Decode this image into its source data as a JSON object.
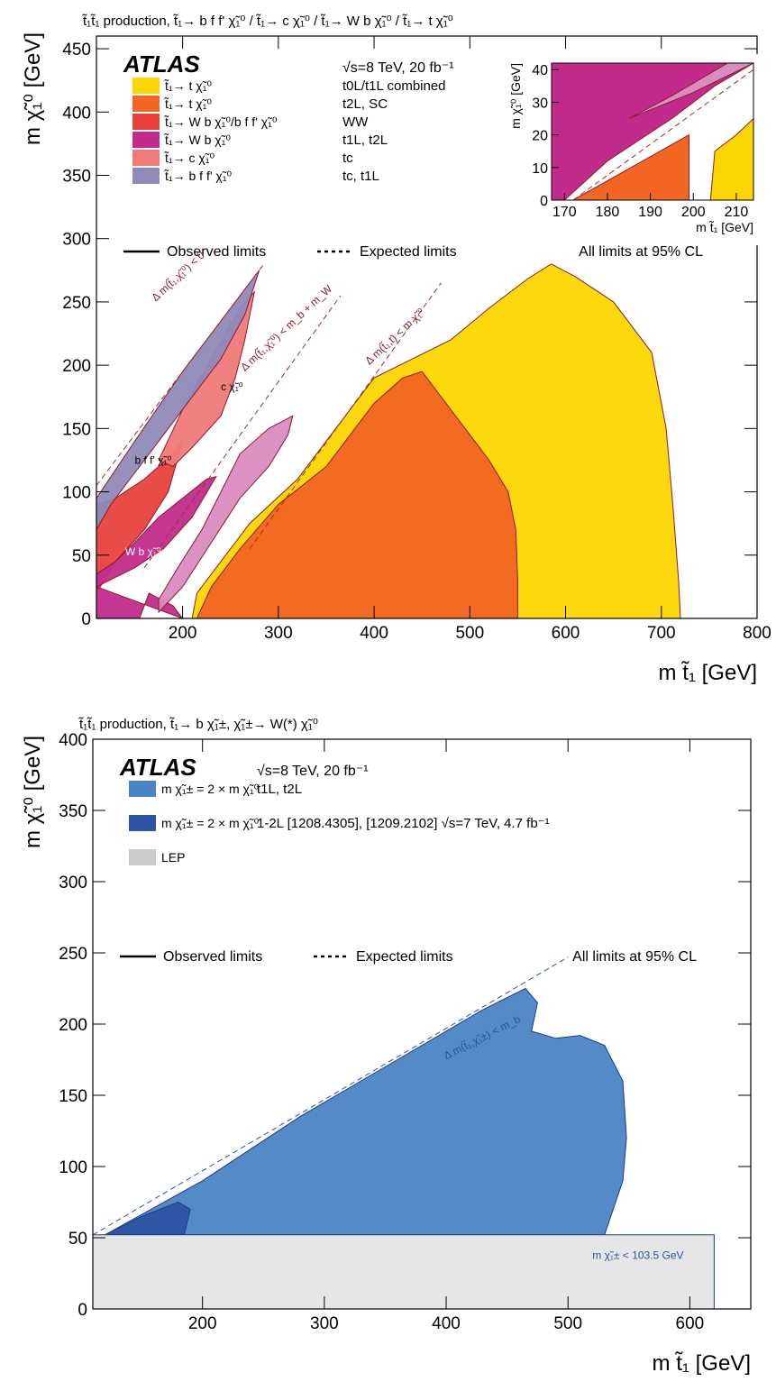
{
  "chart_data": [
    {
      "type": "area",
      "title": "t̃₁t̃₁ production, t̃₁→ b f f' χ̃₁⁰ / t̃₁→ c χ̃₁⁰ / t̃₁→ W b χ̃₁⁰ / t̃₁→ t χ̃₁⁰",
      "brand": "ATLAS",
      "energy_label": "√s=8 TeV, 20 fb⁻¹",
      "xlabel": "m t̃₁ [GeV]",
      "ylabel": "m χ̃₁⁰ [GeV]",
      "xlim": [
        110,
        800
      ],
      "ylim": [
        0,
        460
      ],
      "x_ticks": [
        200,
        300,
        400,
        500,
        600,
        700,
        800
      ],
      "y_ticks": [
        0,
        50,
        100,
        150,
        200,
        250,
        300,
        350,
        400,
        450
      ],
      "legend": [
        {
          "label": "t̃₁→ t χ̃₁⁰",
          "analysis": "t0L/t1L combined",
          "color": "#fcd600"
        },
        {
          "label": "t̃₁→ t χ̃₁⁰",
          "analysis": "t2L, SC",
          "color": "#f26522"
        },
        {
          "label": "t̃₁→ W b χ̃₁⁰/b f f' χ̃₁⁰",
          "analysis": "WW",
          "color": "#e8413c"
        },
        {
          "label": "t̃₁→ W b χ̃₁⁰",
          "analysis": "t1L, t2L",
          "color": "#c22b8c"
        },
        {
          "label": "t̃₁→ c χ̃₁⁰",
          "analysis": "tc",
          "color": "#f07a7a"
        },
        {
          "label": "t̃₁→ b f f' χ̃₁⁰",
          "analysis": "tc, t1L",
          "color": "#8f8ab8"
        }
      ],
      "observed_label": "Observed limits",
      "expected_label": "Expected limits",
      "cl_label": "All limits at 95% CL",
      "annotations": [
        "Δ m(t̃₁,χ̃₁⁰) < 0",
        "Δ m(t̃₁,χ̃₁⁰) < m_b + m_W",
        "Δ m(t̃₁,t) < m χ̃₁⁰",
        "c χ̃₁⁰",
        "b f f' χ̃₁⁰",
        "W b χ̃₁⁰"
      ],
      "series": [
        {
          "name": "t̃₁→ t χ̃₁⁰ (t0L/t1L combined)",
          "color": "#fcd600",
          "polygon": [
            [
              210,
              0
            ],
            [
              215,
              20
            ],
            [
              240,
              45
            ],
            [
              270,
              75
            ],
            [
              320,
              110
            ],
            [
              360,
              150
            ],
            [
              400,
              190
            ],
            [
              440,
              205
            ],
            [
              480,
              220
            ],
            [
              520,
              245
            ],
            [
              560,
              268
            ],
            [
              585,
              280
            ],
            [
              610,
              270
            ],
            [
              650,
              250
            ],
            [
              690,
              210
            ],
            [
              705,
              150
            ],
            [
              712,
              90
            ],
            [
              718,
              30
            ],
            [
              720,
              0
            ]
          ]
        },
        {
          "name": "t̃₁→ t χ̃₁⁰ (t2L, SC)",
          "color": "#f26522",
          "polygon": [
            [
              215,
              0
            ],
            [
              230,
              25
            ],
            [
              260,
              55
            ],
            [
              300,
              90
            ],
            [
              350,
              120
            ],
            [
              400,
              170
            ],
            [
              430,
              190
            ],
            [
              450,
              195
            ],
            [
              480,
              165
            ],
            [
              520,
              125
            ],
            [
              540,
              100
            ],
            [
              548,
              70
            ],
            [
              550,
              30
            ],
            [
              550,
              0
            ]
          ]
        },
        {
          "name": "t̃₁→ W b χ̃₁⁰/b f f' χ̃₁⁰ (WW)",
          "color": "#e8413c",
          "polygon": [
            [
              110,
              20
            ],
            [
              130,
              45
            ],
            [
              160,
              70
            ],
            [
              185,
              100
            ],
            [
              200,
              140
            ],
            [
              190,
              130
            ],
            [
              160,
              110
            ],
            [
              130,
              95
            ],
            [
              110,
              90
            ]
          ]
        },
        {
          "name": "t̃₁→ W b χ̃₁⁰ (t1L, t2L)",
          "color": "#c22b8c",
          "polygon": [
            [
              110,
              25
            ],
            [
              150,
              40
            ],
            [
              180,
              55
            ],
            [
              210,
              80
            ],
            [
              235,
              112
            ],
            [
              225,
              110
            ],
            [
              200,
              95
            ],
            [
              175,
              80
            ],
            [
              150,
              60
            ],
            [
              130,
              45
            ],
            [
              110,
              35
            ],
            [
              110,
              0
            ],
            [
              155,
              0
            ],
            [
              165,
              20
            ],
            [
              190,
              10
            ],
            [
              200,
              0
            ]
          ]
        },
        {
          "name": "t̃₁→ W b χ̃₁⁰ light (t1L, t2L)",
          "color": "#d98cc0",
          "polygon": [
            [
              175,
              5
            ],
            [
              200,
              25
            ],
            [
              230,
              60
            ],
            [
              260,
              95
            ],
            [
              290,
              120
            ],
            [
              310,
              145
            ],
            [
              315,
              160
            ],
            [
              290,
              150
            ],
            [
              260,
              130
            ],
            [
              240,
              100
            ],
            [
              220,
              70
            ],
            [
              195,
              40
            ],
            [
              175,
              15
            ]
          ]
        },
        {
          "name": "t̃₁→ c χ̃₁⁰ (tc)",
          "color": "#f07a7a",
          "polygon": [
            [
              175,
              125
            ],
            [
              200,
              165
            ],
            [
              230,
              205
            ],
            [
              260,
              245
            ],
            [
              275,
              258
            ],
            [
              265,
              220
            ],
            [
              255,
              190
            ],
            [
              240,
              160
            ],
            [
              210,
              135
            ],
            [
              190,
              120
            ]
          ]
        },
        {
          "name": "t̃₁→ b f f' χ̃₁⁰ (tc, t1L)",
          "color": "#8f8ab8",
          "polygon": [
            [
              110,
              95
            ],
            [
              150,
              140
            ],
            [
              200,
              195
            ],
            [
              240,
              235
            ],
            [
              270,
              265
            ],
            [
              280,
              275
            ],
            [
              265,
              240
            ],
            [
              240,
              205
            ],
            [
              210,
              175
            ],
            [
              180,
              145
            ],
            [
              150,
              115
            ],
            [
              125,
              90
            ],
            [
              110,
              70
            ]
          ]
        }
      ],
      "inset": {
        "xlabel": "m t̃₁ [GeV]",
        "ylabel": "m χ̃₁⁰ [GeV]",
        "xlim": [
          167,
          214
        ],
        "ylim": [
          0,
          42
        ],
        "x_ticks": [
          170,
          180,
          190,
          200,
          210
        ],
        "y_ticks": [
          0,
          10,
          20,
          30,
          40
        ]
      }
    },
    {
      "type": "area",
      "title": "t̃₁t̃₁ production, t̃₁→ b χ̃₁±, χ̃₁±→ W(*) χ̃₁⁰",
      "brand": "ATLAS",
      "energy_label": "√s=8 TeV, 20 fb⁻¹",
      "xlabel": "m t̃₁ [GeV]",
      "ylabel": "m χ̃₁⁰ [GeV]",
      "xlim": [
        110,
        650
      ],
      "ylim": [
        0,
        400
      ],
      "x_ticks": [
        200,
        300,
        400,
        500,
        600
      ],
      "y_ticks": [
        0,
        50,
        100,
        150,
        200,
        250,
        300,
        350,
        400
      ],
      "legend": [
        {
          "label": "m χ̃₁± = 2 × m χ̃₁⁰",
          "analysis": "t1L, t2L",
          "color": "#4a84c4"
        },
        {
          "label": "m χ̃₁± = 2 × m χ̃₁⁰",
          "analysis": "1-2L [1208.4305], [1209.2102]  √s=7 TeV, 4.7 fb⁻¹",
          "color": "#2c53a3"
        },
        {
          "label": "LEP",
          "analysis": "",
          "color": "#cccccc"
        }
      ],
      "observed_label": "Observed limits",
      "expected_label": "Expected limits",
      "cl_label": "All limits at 95% CL",
      "annotations": [
        "Δ m(t̃₁,χ̃₁±) < m_b",
        "m χ̃₁± < 103.5 GeV"
      ],
      "series": [
        {
          "name": "m χ̃₁± = 2 × m χ̃₁⁰ (t1L, t2L)",
          "color": "#4a84c4",
          "polygon": [
            [
              120,
              52
            ],
            [
              200,
              90
            ],
            [
              280,
              135
            ],
            [
              360,
              175
            ],
            [
              430,
              210
            ],
            [
              465,
              225
            ],
            [
              475,
              215
            ],
            [
              470,
              195
            ],
            [
              490,
              190
            ],
            [
              510,
              192
            ],
            [
              530,
              185
            ],
            [
              545,
              160
            ],
            [
              548,
              120
            ],
            [
              545,
              90
            ],
            [
              530,
              52
            ]
          ]
        },
        {
          "name": "m χ̃₁± = 2 × m χ̃₁⁰ (1-2L)",
          "color": "#2c53a3",
          "polygon": [
            [
              120,
              52
            ],
            [
              150,
              65
            ],
            [
              180,
              75
            ],
            [
              190,
              70
            ],
            [
              185,
              52
            ]
          ]
        },
        {
          "name": "LEP",
          "color": "#e5e5e5",
          "polygon": [
            [
              110,
              0
            ],
            [
              620,
              0
            ],
            [
              620,
              52
            ],
            [
              110,
              52
            ]
          ]
        }
      ]
    }
  ]
}
